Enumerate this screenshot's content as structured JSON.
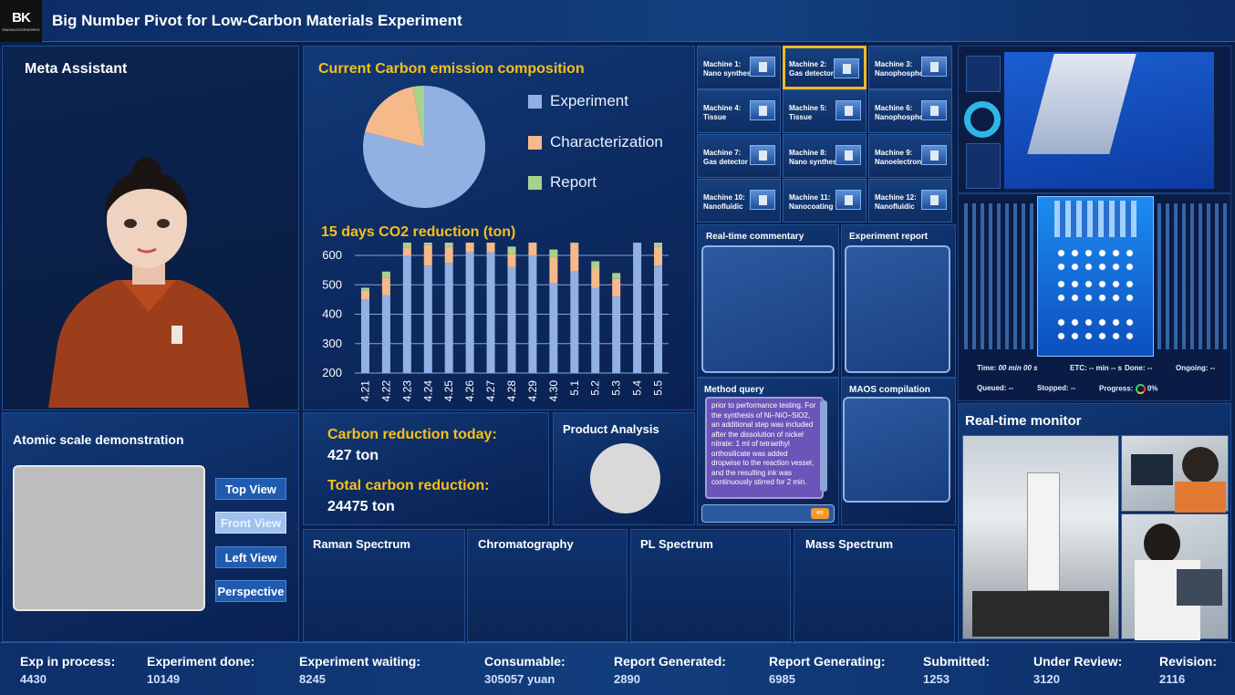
{
  "app": {
    "title": "Big Number Pivot for Low-Carbon Materials Experiment",
    "logo_mark": "BK",
    "logo_text": "KNOWLEDGEWORKS"
  },
  "meta_assistant": {
    "title": "Meta Assistant"
  },
  "composition": {
    "title": "Current Carbon emission composition",
    "legend": [
      "Experiment",
      "Characterization",
      "Report"
    ],
    "colors": [
      "#92b1e3",
      "#f6b98a",
      "#a9d18e"
    ]
  },
  "reduction_chart": {
    "title": "15 days CO2 reduction (ton)"
  },
  "chart_data": [
    {
      "type": "pie",
      "title": "Current Carbon emission composition",
      "categories": [
        "Experiment",
        "Characterization",
        "Report"
      ],
      "values": [
        79,
        18,
        3
      ]
    },
    {
      "type": "bar",
      "title": "15 days CO2 reduction (ton)",
      "categories": [
        "4.21",
        "4.22",
        "4.23",
        "4.24",
        "4.25",
        "4.26",
        "4.27",
        "4.28",
        "4.29",
        "4.30",
        "5.1",
        "5.2",
        "5.3",
        "5.4",
        "5.5"
      ],
      "series": [
        {
          "values": [
            250,
            265,
            400,
            365,
            375,
            410,
            410,
            360,
            400,
            305,
            345,
            290,
            260,
            460,
            365
          ]
        },
        {
          "values": [
            30,
            60,
            25,
            70,
            55,
            35,
            90,
            45,
            80,
            90,
            95,
            65,
            60,
            40,
            65
          ]
        },
        {
          "values": [
            10,
            20,
            20,
            25,
            20,
            25,
            30,
            25,
            15,
            25,
            25,
            25,
            20,
            30,
            25
          ]
        }
      ],
      "ylim": [
        200,
        600
      ],
      "yticks": [
        200,
        300,
        400,
        500,
        600
      ],
      "grid": true
    }
  ],
  "machines": [
    {
      "label": "Machine 1:",
      "name": "Nano synthesis"
    },
    {
      "label": "Machine 2:",
      "name": "Gas detector"
    },
    {
      "label": "Machine 3:",
      "name": "Nanophosphor"
    },
    {
      "label": "Machine 4:",
      "name": "Tissue"
    },
    {
      "label": "Machine 5:",
      "name": "Tissue"
    },
    {
      "label": "Machine 6:",
      "name": "Nanophosphor"
    },
    {
      "label": "Machine 7:",
      "name": "Gas detector"
    },
    {
      "label": "Machine 8:",
      "name": "Nano synthesis"
    },
    {
      "label": "Machine 9:",
      "name": "Nanoelectronics"
    },
    {
      "label": "Machine 10:",
      "name": "Nanofluidic"
    },
    {
      "label": "Machine 11:",
      "name": "Nanocoating"
    },
    {
      "label": "Machine 12:",
      "name": "Nanofluidic"
    }
  ],
  "selected_machine": 1,
  "commentary": {
    "realtime": "Real-time commentary",
    "report": "Experiment report"
  },
  "method_query": {
    "title": "Method query",
    "text": "prior to performance testing. For the synthesis of Ni–NiO–SiO2, an additional step was included after the dissolution of nickel nitrate: 1 ml of tetraethyl orthosilicate was added dropwise to the reaction vessel, and the resulting ink was continuously stirred for 2 min."
  },
  "maos": {
    "title": "MAOS compilation"
  },
  "monitor_status": {
    "time_label": "Time:",
    "time_value": "00 min 00 s",
    "etc_label": "ETC:",
    "etc_value": "-- min -- s",
    "done_label": "Done:",
    "done_value": "--",
    "ongoing_label": "Ongoing:",
    "ongoing_value": "--",
    "queued_label": "Queued:",
    "queued_value": "--",
    "stopped_label": "Stopped:",
    "stopped_value": "--",
    "progress_label": "Progress:",
    "progress_value": "0%"
  },
  "realtime_monitor": {
    "title": "Real-time monitor"
  },
  "atomic": {
    "title": "Atomic scale demonstration",
    "views": [
      "Top View",
      "Front View",
      "Left View",
      "Perspective"
    ],
    "active_view": 1
  },
  "carbon": {
    "today_label": "Carbon reduction today:",
    "today_value": "427 ton",
    "total_label": "Total carbon reduction:",
    "total_value": "24475 ton"
  },
  "product_analysis": {
    "title": "Product Analysis"
  },
  "spectra": [
    "Raman Spectrum",
    "Chromatography",
    "PL Spectrum",
    "Mass Spectrum"
  ],
  "stats": [
    {
      "label": "Exp in process:",
      "value": "4430"
    },
    {
      "label": "Experiment done:",
      "value": "10149"
    },
    {
      "label": "Experiment waiting:",
      "value": "8245"
    },
    {
      "label": "Consumable:",
      "value": "305057 yuan"
    },
    {
      "label": "Report Generated:",
      "value": "2890"
    },
    {
      "label": "Report Generating:",
      "value": "6985"
    },
    {
      "label": "Submitted:",
      "value": "1253"
    },
    {
      "label": "Under Review:",
      "value": "3120"
    },
    {
      "label": "Revision:",
      "value": "2116"
    }
  ]
}
